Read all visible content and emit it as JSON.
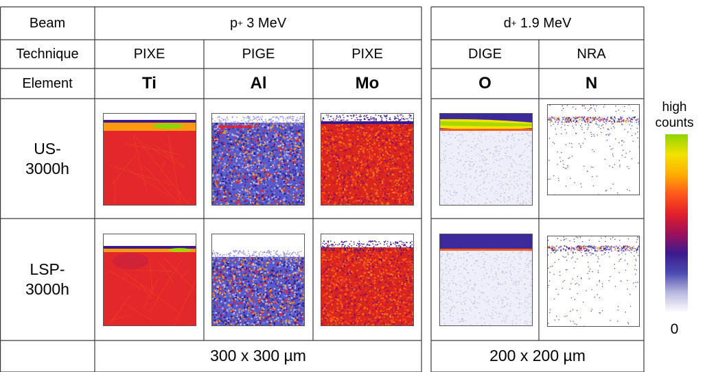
{
  "headers": {
    "beam_label": "Beam",
    "technique_label": "Technique",
    "element_label": "Element"
  },
  "groups": [
    {
      "particle": "p",
      "charge": "+",
      "energy": "3 MeV",
      "size_text": "300 x 300 µm"
    },
    {
      "particle": "d",
      "charge": "+",
      "energy": "1.9 MeV",
      "size_text": "200 x 200 µm"
    }
  ],
  "columns": [
    {
      "technique": "PIXE",
      "element": "Ti",
      "style": "ti"
    },
    {
      "technique": "PIGE",
      "element": "Al",
      "style": "al"
    },
    {
      "technique": "PIXE",
      "element": "Mo",
      "style": "mo"
    },
    {
      "technique": "DIGE",
      "element": "O",
      "style": "o"
    },
    {
      "technique": "NRA",
      "element": "N",
      "style": "n"
    }
  ],
  "samples": [
    {
      "label_line1": "US-",
      "label_line2": "3000h"
    },
    {
      "label_line1": "LSP-",
      "label_line2": "3000h"
    }
  ],
  "colorbar": {
    "high_label_line1": "high",
    "high_label_line2": "counts",
    "low_label": "0",
    "colors": [
      "#8fd400",
      "#f2e200",
      "#ffb000",
      "#ff5a1a",
      "#e4202a",
      "#a0105a",
      "#3c1a8c",
      "#4a4ab0",
      "#b8b8e0",
      "#ffffff"
    ]
  }
}
